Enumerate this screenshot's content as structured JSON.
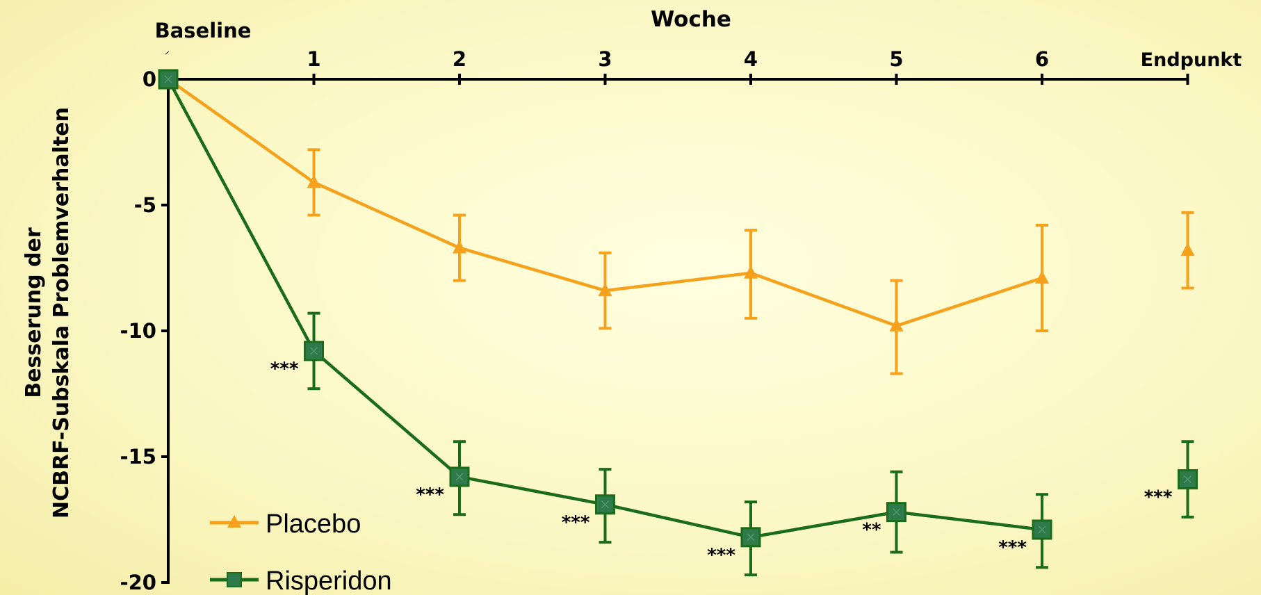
{
  "chart_data": {
    "type": "line",
    "xlabel": "Woche",
    "ylabel_line1": "Besserung der",
    "ylabel_line2": "NCBRF-Subskala Problemverhalten",
    "categories": [
      "Baseline",
      "1",
      "2",
      "3",
      "4",
      "5",
      "6",
      "Endpunkt"
    ],
    "tick_labels": [
      "",
      "1",
      "2",
      "3",
      "4",
      "5",
      "6",
      "Endpunkt"
    ],
    "baseline_label": "Baseline",
    "yticks": [
      "0",
      "-5",
      "-10",
      "-15",
      "-20"
    ],
    "ylim": [
      -20,
      0
    ],
    "series": [
      {
        "name": "Placebo",
        "color": "#f6a11c",
        "marker": "triangle",
        "values": [
          0,
          -4.1,
          -6.7,
          -8.4,
          -7.7,
          -9.8,
          -7.9,
          -6.8
        ],
        "err_low": [
          0,
          -5.4,
          -8.0,
          -9.9,
          -9.5,
          -11.7,
          -10.0,
          -8.3
        ],
        "err_high": [
          0,
          -2.8,
          -5.4,
          -6.9,
          -6.0,
          -8.0,
          -5.8,
          -5.3
        ]
      },
      {
        "name": "Risperidon",
        "color": "#1a6b1a",
        "marker": "square",
        "marker_fill": "#2e7a4a",
        "values": [
          0,
          -10.8,
          -15.8,
          -16.9,
          -18.2,
          -17.2,
          -17.9,
          -15.9
        ],
        "err_low": [
          0,
          -12.3,
          -17.3,
          -18.4,
          -19.7,
          -18.8,
          -19.4,
          -17.4
        ],
        "err_high": [
          0,
          -9.3,
          -14.4,
          -15.5,
          -16.8,
          -15.6,
          -16.5,
          -14.4
        ]
      }
    ],
    "significance": [
      "",
      "***",
      "***",
      "***",
      "***",
      "**",
      "***",
      "***"
    ]
  }
}
